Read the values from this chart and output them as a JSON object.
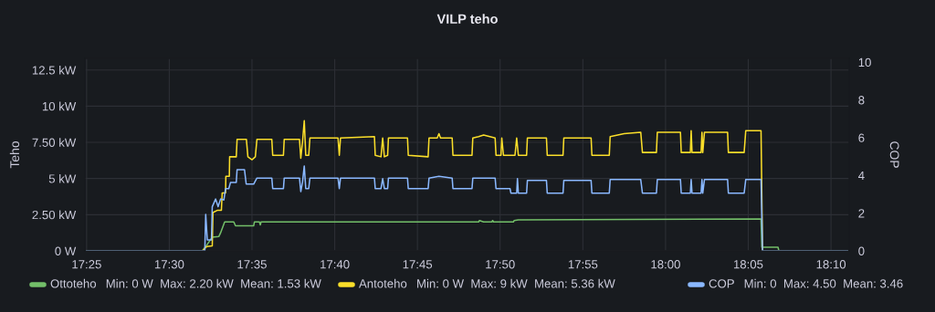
{
  "chart_data": {
    "type": "line",
    "title": "VILP teho",
    "ylabel": "Teho",
    "y2label": "COP",
    "annotations": [
      "Min: 0 W  Max: 2.20 kW  Mean: 1.53 kW",
      "Min: 0 W  Max: 9 kW  Mean: 5.36 kW",
      "Min: 0  Max: 4.50  Mean: 3.46"
    ],
    "xlim": [
      17.415,
      18.185
    ],
    "xticks": [
      {
        "value": 17.4167,
        "label": "17:25"
      },
      {
        "value": 17.5,
        "label": "17:30"
      },
      {
        "value": 17.5833,
        "label": "17:35"
      },
      {
        "value": 17.6667,
        "label": "17:40"
      },
      {
        "value": 17.75,
        "label": "17:45"
      },
      {
        "value": 17.8333,
        "label": "17:50"
      },
      {
        "value": 17.9167,
        "label": "17:55"
      },
      {
        "value": 18.0,
        "label": "18:00"
      },
      {
        "value": 18.0833,
        "label": "18:05"
      },
      {
        "value": 18.1667,
        "label": "18:10"
      }
    ],
    "ylim": [
      0,
      13.3
    ],
    "yticks": [
      {
        "value": 0,
        "label": "0 W"
      },
      {
        "value": 2.5,
        "label": "2.50 kW"
      },
      {
        "value": 5,
        "label": "5 kW"
      },
      {
        "value": 7.5,
        "label": "7.50 kW"
      },
      {
        "value": 10,
        "label": "10 kW"
      },
      {
        "value": 12.5,
        "label": "12.5 kW"
      }
    ],
    "y2lim": [
      0,
      10.2
    ],
    "y2ticks": [
      0,
      2,
      4,
      6,
      8,
      10
    ],
    "grid": true,
    "legend": "bottom",
    "line_style": "solid",
    "series": [
      {
        "name": "Ottoteho",
        "color": "#73bf69",
        "x": [
          17.4167,
          17.5333,
          17.5378,
          17.5433,
          17.55,
          17.5517,
          17.5558,
          17.565,
          17.5667,
          17.585,
          17.5858,
          17.5908,
          17.5917,
          17.5925,
          17.8117,
          17.8125,
          17.8167,
          17.825,
          17.8258,
          17.8267,
          17.8467,
          17.8475,
          17.8517,
          18.0962,
          18.097,
          18.1133,
          18.1142,
          18.1833
        ],
        "values": [
          0,
          0,
          0.4,
          0.95,
          1.0,
          1.25,
          2.0,
          2.0,
          1.73,
          1.73,
          2.0,
          2.0,
          1.8,
          2.0,
          2.0,
          2.1,
          2.0,
          2.0,
          2.1,
          2.0,
          2.0,
          2.1,
          2.15,
          2.2,
          0.25,
          0.25,
          0,
          0
        ]
      },
      {
        "name": "Antoteho",
        "color": "#fade2a",
        "x": [
          17.4167,
          17.5333,
          17.5378,
          17.5433,
          17.544,
          17.5483,
          17.5525,
          17.5533,
          17.5567,
          17.557,
          17.5605,
          17.5608,
          17.5675,
          17.5683,
          17.5777,
          17.5792,
          17.5833,
          17.5867,
          17.5883,
          17.6033,
          17.6042,
          17.615,
          17.6158,
          17.6312,
          17.6325,
          17.6342,
          17.636,
          17.6375,
          17.6405,
          17.6417,
          17.67,
          17.6713,
          17.6725,
          17.7067,
          17.7075,
          17.7133,
          17.715,
          17.7167,
          17.72,
          17.7208,
          17.74,
          17.7408,
          17.7608,
          17.7617,
          17.77,
          17.7717,
          17.7733,
          17.785,
          17.7858,
          17.805,
          17.8058,
          17.8117,
          17.8167,
          17.8283,
          17.8292,
          17.8342,
          17.835,
          17.8367,
          17.8483,
          17.85,
          17.8517,
          17.86,
          17.8608,
          17.88,
          17.8808,
          17.8967,
          17.8975,
          17.925,
          17.9258,
          17.9433,
          17.9442,
          17.9583,
          17.975,
          17.9767,
          17.9908,
          17.9917,
          18.015,
          18.0158,
          18.025,
          18.0258,
          18.0267,
          18.0358,
          18.0367,
          18.0375,
          18.0392,
          18.0625,
          18.0633,
          18.0792,
          18.0808,
          18.0962,
          18.0977,
          18.1833
        ],
        "values": [
          0,
          0,
          0.3,
          0.35,
          2.65,
          2.8,
          2.8,
          4.0,
          4.0,
          5.15,
          5.15,
          6.5,
          6.5,
          7.7,
          7.7,
          6.5,
          6.3,
          6.5,
          7.7,
          7.7,
          6.6,
          6.6,
          7.7,
          7.7,
          6.4,
          7.5,
          9.0,
          6.6,
          6.6,
          7.8,
          7.8,
          6.6,
          7.8,
          7.9,
          6.6,
          6.5,
          7.8,
          6.5,
          6.6,
          7.8,
          7.8,
          6.6,
          6.5,
          7.8,
          7.8,
          8.1,
          7.8,
          7.8,
          6.6,
          6.6,
          7.8,
          7.9,
          8.0,
          7.8,
          6.6,
          6.6,
          7.8,
          6.6,
          6.6,
          7.8,
          6.6,
          6.6,
          7.8,
          7.8,
          6.6,
          6.6,
          7.8,
          7.8,
          6.6,
          6.6,
          7.9,
          8.1,
          8.2,
          6.8,
          6.8,
          8.2,
          8.2,
          6.8,
          6.8,
          8.3,
          6.8,
          6.8,
          8.2,
          6.8,
          8.2,
          8.2,
          6.8,
          6.8,
          8.3,
          8.3,
          0,
          0
        ]
      },
      {
        "name": "COP",
        "color": "#8ab8ff",
        "axis": "y2",
        "x": [
          17.4167,
          17.5333,
          17.5358,
          17.5367,
          17.5383,
          17.5425,
          17.5433,
          17.5467,
          17.5492,
          17.5517,
          17.555,
          17.5567,
          17.56,
          17.5617,
          17.5675,
          17.5683,
          17.5758,
          17.5775,
          17.585,
          17.5883,
          17.6033,
          17.6042,
          17.615,
          17.6158,
          17.6312,
          17.6325,
          17.6342,
          17.636,
          17.6375,
          17.6405,
          17.6417,
          17.67,
          17.6713,
          17.6725,
          17.7067,
          17.7075,
          17.7133,
          17.715,
          17.7167,
          17.72,
          17.7208,
          17.74,
          17.7408,
          17.7608,
          17.7617,
          17.7717,
          17.785,
          17.7858,
          17.805,
          17.8058,
          17.8283,
          17.8292,
          17.8433,
          17.8442,
          17.85,
          17.8508,
          17.8517,
          17.86,
          17.8608,
          17.88,
          17.8808,
          17.8967,
          17.8975,
          17.925,
          17.9258,
          17.9433,
          17.9442,
          17.975,
          17.9767,
          17.9908,
          17.9917,
          18.015,
          18.0158,
          18.025,
          18.0258,
          18.0267,
          18.0358,
          18.0367,
          18.0375,
          18.0392,
          18.0625,
          18.0633,
          18.0792,
          18.0808,
          18.0962,
          18.0977,
          18.1833
        ],
        "values": [
          0,
          0,
          0,
          1.93,
          0.58,
          0.58,
          2.34,
          2.75,
          2.34,
          2.75,
          2.7,
          3.3,
          3.3,
          3.63,
          3.63,
          4.3,
          4.3,
          3.54,
          3.54,
          3.86,
          3.86,
          3.3,
          3.3,
          3.86,
          3.86,
          3.14,
          3.63,
          4.5,
          3.3,
          3.3,
          3.86,
          3.86,
          3.3,
          3.86,
          3.86,
          3.3,
          3.3,
          3.83,
          3.3,
          3.3,
          3.86,
          3.86,
          3.3,
          3.3,
          3.86,
          3.95,
          3.86,
          3.3,
          3.3,
          3.86,
          3.86,
          3.3,
          3.3,
          3.06,
          3.06,
          3.83,
          3.06,
          3.06,
          3.73,
          3.73,
          3.06,
          3.06,
          3.73,
          3.73,
          3.06,
          3.06,
          3.78,
          3.78,
          3.06,
          3.06,
          3.78,
          3.78,
          3.06,
          3.06,
          3.78,
          3.06,
          3.06,
          3.78,
          3.06,
          3.78,
          3.78,
          3.06,
          3.06,
          3.78,
          3.78,
          0,
          0
        ]
      }
    ]
  }
}
